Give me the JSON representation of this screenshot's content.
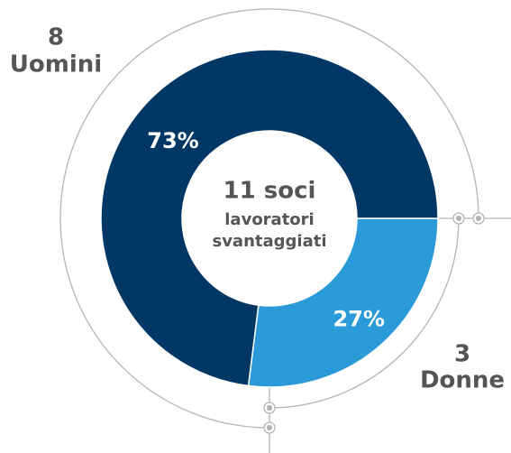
{
  "chart_data": {
    "type": "donut",
    "title": "11 soci",
    "subtitle": [
      "lavoratori",
      "svantaggiati"
    ],
    "categories": [
      "Uomini",
      "Donne"
    ],
    "counts": [
      8,
      3
    ],
    "values": [
      73,
      27
    ],
    "value_labels": [
      "73%",
      "27%"
    ],
    "colors": [
      "#003764",
      "#2a9ad8"
    ]
  }
}
